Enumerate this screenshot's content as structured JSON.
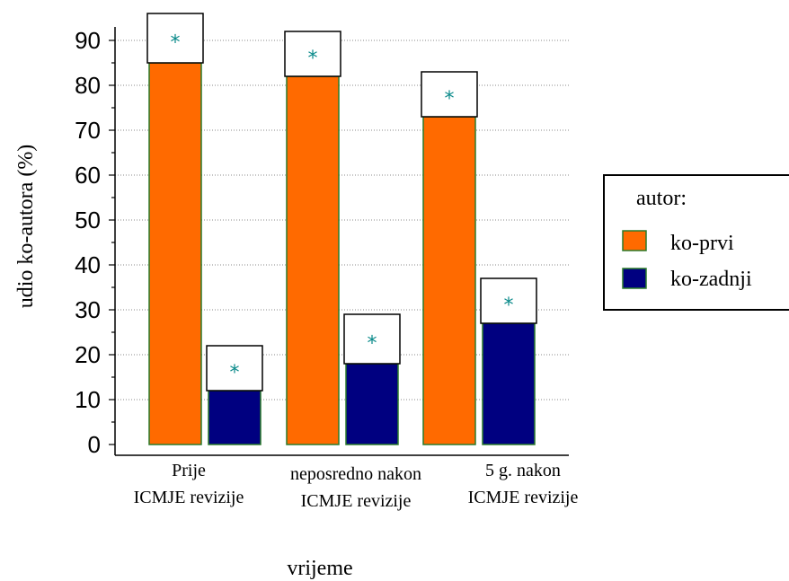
{
  "chart_data": {
    "type": "bar",
    "categories": [
      [
        "Prije",
        "ICMJE revizije"
      ],
      [
        "neposredno nakon",
        "ICMJE revizije"
      ],
      [
        "5 g. nakon",
        "ICMJE revizije"
      ]
    ],
    "series": [
      {
        "name": "ko-prvi",
        "values": [
          85,
          82,
          73
        ],
        "color": "#ff6a00",
        "err_top": [
          96,
          92,
          83
        ]
      },
      {
        "name": "ko-zadnji",
        "values": [
          12,
          18,
          27
        ],
        "color": "#000080",
        "err_top": [
          22,
          29,
          37
        ]
      }
    ],
    "significance_marker": "*",
    "xlabel": "vrijeme",
    "ylabel": "udio ko-autora (%)",
    "ylim": [
      0,
      90
    ],
    "yticks": [
      0,
      10,
      20,
      30,
      40,
      50,
      60,
      70,
      80,
      90
    ],
    "grid": "horizontal-dotted",
    "legend": {
      "title": "autor:",
      "placement": "right"
    }
  }
}
